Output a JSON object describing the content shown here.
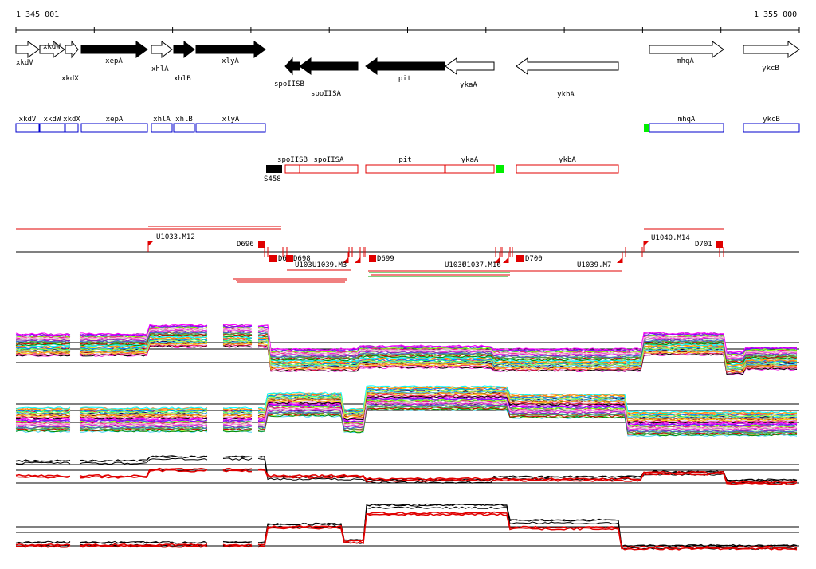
{
  "coords": {
    "left": "1 345 001",
    "right": "1 355 000"
  },
  "genes": [
    {
      "name": "xkdV",
      "x1": 20,
      "x2": 49,
      "dir": "+",
      "fill": "white",
      "row": 0
    },
    {
      "name": "xkdW",
      "x1": 50,
      "x2": 81,
      "dir": "+",
      "fill": "white",
      "row": 0
    },
    {
      "name": "xkdX",
      "x1": 82,
      "x2": 98,
      "dir": "+",
      "fill": "white",
      "row": 0
    },
    {
      "name": "xepA",
      "x1": 102,
      "x2": 185,
      "dir": "+",
      "fill": "black",
      "row": 0
    },
    {
      "name": "xhlA",
      "x1": 190,
      "x2": 216,
      "dir": "+",
      "fill": "white",
      "row": 0
    },
    {
      "name": "xhlB",
      "x1": 218,
      "x2": 244,
      "dir": "+",
      "fill": "black",
      "row": 0
    },
    {
      "name": "xlyA",
      "x1": 246,
      "x2": 333,
      "dir": "+",
      "fill": "black",
      "row": 0
    },
    {
      "name": "spoIISB",
      "x1": 358,
      "x2": 376,
      "dir": "-",
      "fill": "black",
      "row": 1
    },
    {
      "name": "spoIISA",
      "x1": 376,
      "x2": 449,
      "dir": "-",
      "fill": "black",
      "row": 1
    },
    {
      "name": "pit",
      "x1": 459,
      "x2": 558,
      "dir": "-",
      "fill": "black",
      "row": 1
    },
    {
      "name": "ykaA",
      "x1": 559,
      "x2": 620,
      "dir": "-",
      "fill": "white",
      "row": 1
    },
    {
      "name": "ykbA",
      "x1": 648,
      "x2": 776,
      "dir": "-",
      "fill": "white",
      "row": 1
    },
    {
      "name": "mhqA",
      "x1": 815,
      "x2": 908,
      "dir": "+",
      "fill": "white",
      "row": 0
    },
    {
      "name": "ykcB",
      "x1": 933,
      "x2": 1003,
      "dir": "+",
      "fill": "white",
      "row": 0
    }
  ],
  "operons_fwd": [
    {
      "name": "xkdV",
      "x1": 20,
      "x2": 49
    },
    {
      "name": "xkdW",
      "x1": 50,
      "x2": 81
    },
    {
      "name": "xkdX",
      "x1": 82,
      "x2": 98
    },
    {
      "name": "xepA",
      "x1": 102,
      "x2": 185
    },
    {
      "name": "xhlA",
      "x1": 190,
      "x2": 216
    },
    {
      "name": "xhlB",
      "x1": 218,
      "x2": 244
    },
    {
      "name": "xlyA",
      "x1": 246,
      "x2": 333
    },
    {
      "name": "mhqA",
      "x1": 815,
      "x2": 908
    },
    {
      "name": "ykcB",
      "x1": 933,
      "x2": 1003
    }
  ],
  "operons_rev": [
    {
      "name": "spoIISB",
      "x1": 358,
      "x2": 376
    },
    {
      "name": "spoIISA",
      "x1": 376,
      "x2": 449
    },
    {
      "name": "pit",
      "x1": 459,
      "x2": 558
    },
    {
      "name": "ykaA",
      "x1": 559,
      "x2": 620
    },
    {
      "name": "ykbA",
      "x1": 648,
      "x2": 776
    }
  ],
  "markers": [
    {
      "label": "S458",
      "x1": 334,
      "x2": 354,
      "color": "#000000"
    }
  ],
  "green_boxes": [
    {
      "x1": 808,
      "x2": 815,
      "track": "fwd"
    },
    {
      "x1": 623,
      "x2": 633,
      "track": "rev"
    }
  ],
  "segment_labels": [
    {
      "text": "U1033.M12"
    },
    {
      "text": "D696"
    },
    {
      "text": "U1040.M14"
    },
    {
      "text": "D701"
    },
    {
      "text": "D6"
    },
    {
      "text": "D698"
    },
    {
      "text": "U103"
    },
    {
      "text": "U1039.M3"
    },
    {
      "text": "D699"
    },
    {
      "text": "U1036"
    },
    {
      "text": "U1037.M16"
    },
    {
      "text": "D700"
    },
    {
      "text": "U1039.M7"
    }
  ],
  "colors": {
    "red": "#e00000",
    "blue": "#0000cc",
    "green": "#00ee00",
    "black": "#000000"
  }
}
